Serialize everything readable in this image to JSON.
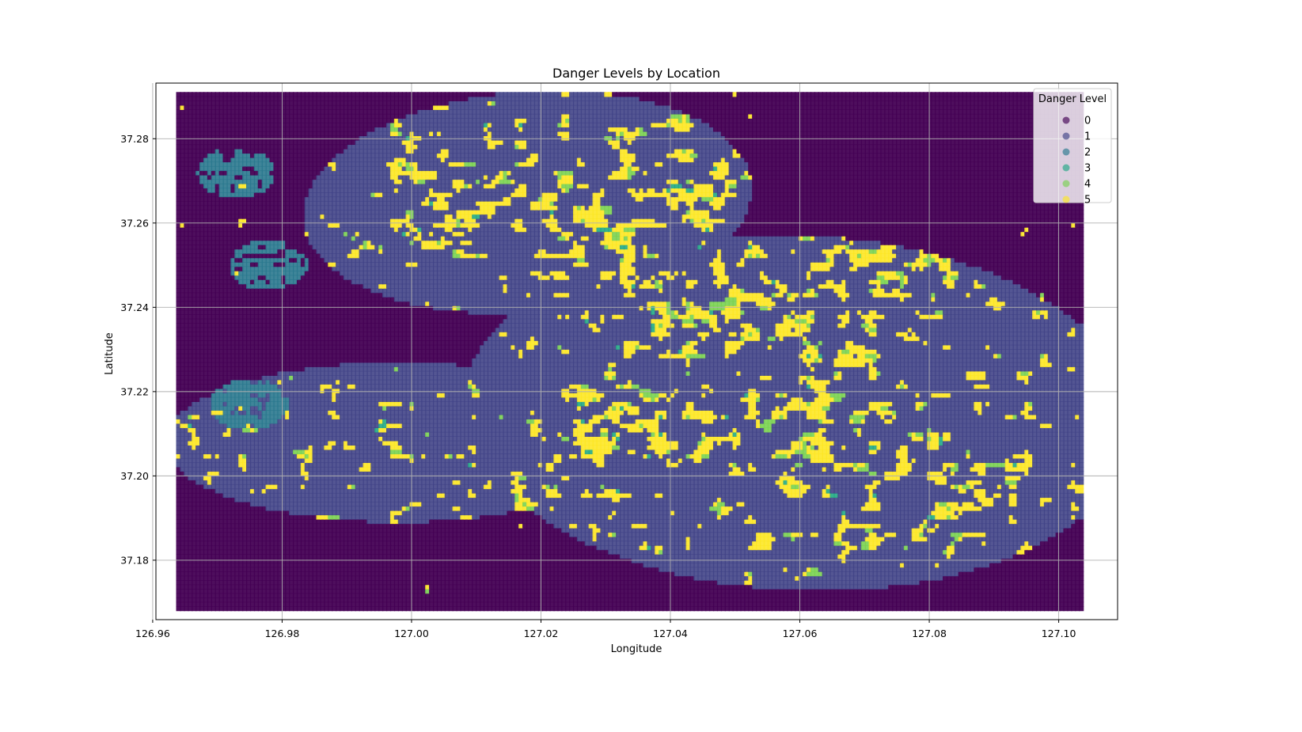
{
  "chart_data": {
    "type": "scatter",
    "title": "Danger Levels by Location",
    "xlabel": "Longitude",
    "ylabel": "Latitude",
    "xlim": [
      126.9605,
      127.1091
    ],
    "ylim": [
      37.1659,
      37.2932
    ],
    "data_extent": {
      "lon": [
        126.964,
        127.1035
      ],
      "lat": [
        37.1685,
        37.2905
      ]
    },
    "xticks": [
      "126.96",
      "126.98",
      "127.00",
      "127.02",
      "127.04",
      "127.06",
      "127.08",
      "127.10"
    ],
    "xtick_values": [
      126.96,
      126.98,
      127.0,
      127.02,
      127.04,
      127.06,
      127.08,
      127.1
    ],
    "yticks": [
      "37.18",
      "37.20",
      "37.22",
      "37.24",
      "37.26",
      "37.28"
    ],
    "ytick_values": [
      37.18,
      37.2,
      37.22,
      37.24,
      37.26,
      37.28
    ],
    "grid": true,
    "legend": {
      "title": "Danger Level",
      "placement": "upper right",
      "entries": [
        "0",
        "1",
        "2",
        "3",
        "4",
        "5"
      ]
    },
    "colors": {
      "0": "#440154",
      "1": "#414487",
      "2": "#2a788e",
      "3": "#22a884",
      "4": "#7ad151",
      "5": "#fde725"
    },
    "series": [
      {
        "name": "0",
        "region": "background"
      },
      {
        "name": "1",
        "region": "three elongated blobs",
        "blobs": [
          {
            "center": [
              127.018,
              37.265
            ],
            "rx": 0.035,
            "ry": 0.026,
            "rot_deg": -12
          },
          {
            "center": [
              127.06,
              37.215
            ],
            "rx": 0.052,
            "ry": 0.042,
            "rot_deg": 8
          },
          {
            "center": [
              126.998,
              37.208
            ],
            "rx": 0.036,
            "ry": 0.019,
            "rot_deg": 0
          }
        ]
      },
      {
        "name": "2",
        "region": "west clusters",
        "clusters": [
          [
            126.973,
            37.272
          ],
          [
            126.978,
            37.25
          ],
          [
            126.975,
            37.217
          ]
        ]
      },
      {
        "name": "3",
        "region": "scattered patches"
      },
      {
        "name": "4",
        "region": "scattered patches"
      },
      {
        "name": "5",
        "region": "dense clusters",
        "clusters": [
          [
            127.012,
            37.268
          ],
          [
            127.03,
            37.262
          ],
          [
            127.045,
            37.265
          ],
          [
            127.074,
            37.252
          ],
          [
            127.036,
            37.212
          ],
          [
            127.06,
            37.212
          ],
          [
            127.078,
            37.2
          ],
          [
            127.052,
            37.24
          ]
        ]
      }
    ]
  }
}
